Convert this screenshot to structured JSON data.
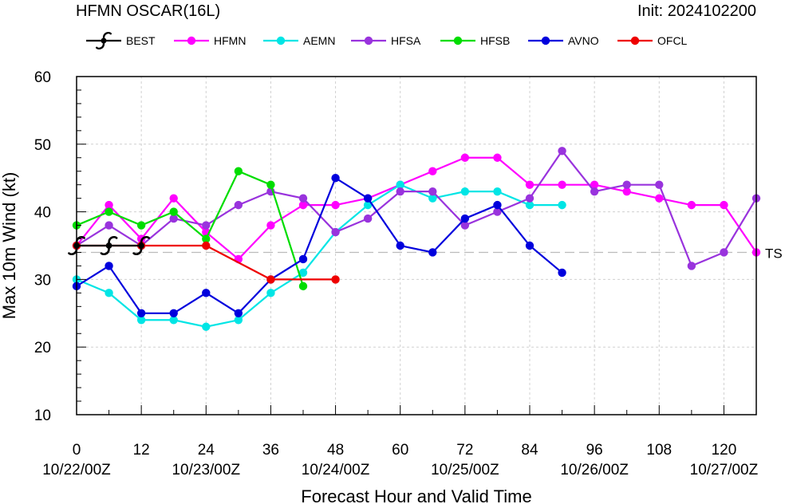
{
  "chart_data": {
    "type": "line",
    "title": "HFMN OSCAR(16L)",
    "init_label": "Init: 2024102200",
    "xlabel": "Forecast Hour and Valid Time",
    "ylabel": "Max 10m Wind (kt)",
    "xlim": [
      0,
      126
    ],
    "ylim": [
      10,
      60
    ],
    "x_ticks": [
      0,
      12,
      24,
      36,
      48,
      60,
      72,
      84,
      96,
      108,
      120
    ],
    "y_ticks": [
      10,
      20,
      30,
      40,
      50,
      60
    ],
    "x_date_labels": [
      {
        "x": 0,
        "label": "10/22/00Z"
      },
      {
        "x": 24,
        "label": "10/23/00Z"
      },
      {
        "x": 48,
        "label": "10/24/00Z"
      },
      {
        "x": 72,
        "label": "10/25/00Z"
      },
      {
        "x": 96,
        "label": "10/26/00Z"
      },
      {
        "x": 120,
        "label": "10/27/00Z"
      }
    ],
    "reference_lines": [
      {
        "y": 34,
        "label": "TS"
      }
    ],
    "grid": true,
    "legend_position": "top",
    "series": [
      {
        "name": "BEST",
        "color": "#000000",
        "marker": "hurricane",
        "x": [
          0,
          6,
          12
        ],
        "values": [
          35,
          35,
          35
        ]
      },
      {
        "name": "HFMN",
        "color": "#ff00ff",
        "marker": "circle",
        "x": [
          0,
          6,
          12,
          18,
          24,
          30,
          36,
          42,
          48,
          54,
          60,
          66,
          72,
          78,
          84,
          90,
          96,
          102,
          108,
          114,
          120,
          126
        ],
        "values": [
          35,
          41,
          36,
          42,
          37,
          33,
          38,
          41,
          41,
          42,
          44,
          46,
          48,
          48,
          44,
          44,
          44,
          43,
          42,
          41,
          41,
          34
        ]
      },
      {
        "name": "AEMN",
        "color": "#00e5e5",
        "marker": "circle",
        "x": [
          0,
          6,
          12,
          18,
          24,
          30,
          36,
          42,
          48,
          54,
          60,
          66,
          72,
          78,
          84,
          90
        ],
        "values": [
          30,
          28,
          24,
          24,
          23,
          24,
          28,
          31,
          37,
          41,
          44,
          42,
          43,
          43,
          41,
          41
        ]
      },
      {
        "name": "HFSA",
        "color": "#9933dd",
        "marker": "circle",
        "x": [
          0,
          6,
          12,
          18,
          24,
          30,
          36,
          42,
          48,
          54,
          60,
          66,
          72,
          78,
          84,
          90,
          96,
          102,
          108,
          114,
          120,
          126
        ],
        "values": [
          35,
          38,
          35,
          39,
          38,
          41,
          43,
          42,
          37,
          39,
          43,
          43,
          38,
          40,
          42,
          49,
          43,
          44,
          44,
          32,
          34,
          42
        ]
      },
      {
        "name": "HFSB",
        "color": "#00dd00",
        "marker": "circle",
        "x": [
          0,
          6,
          12,
          18,
          24,
          30,
          36,
          42
        ],
        "values": [
          38,
          40,
          38,
          40,
          36,
          46,
          44,
          29
        ]
      },
      {
        "name": "AVNO",
        "color": "#0000dd",
        "marker": "circle",
        "x": [
          0,
          6,
          12,
          18,
          24,
          30,
          36,
          42,
          48,
          54,
          60,
          66,
          72,
          78,
          84,
          90
        ],
        "values": [
          29,
          32,
          25,
          25,
          28,
          25,
          30,
          33,
          45,
          42,
          35,
          34,
          39,
          41,
          35,
          31
        ]
      },
      {
        "name": "OFCL",
        "color": "#ee0000",
        "marker": "circle",
        "x": [
          0,
          12,
          24,
          36,
          48
        ],
        "values": [
          35,
          35,
          35,
          30,
          30
        ]
      }
    ]
  }
}
